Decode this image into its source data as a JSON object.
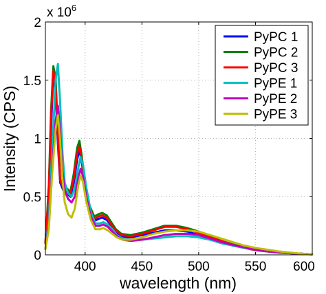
{
  "chart_data": {
    "type": "line",
    "title": "",
    "xlabel": "wavelength (nm)",
    "ylabel": "Intensity (CPS)",
    "xlim": [
      365,
      600
    ],
    "ylim": [
      0,
      2
    ],
    "y_multiplier_base": "x 10",
    "y_multiplier_exp": "6",
    "x_ticks": [
      "400",
      "450",
      "500",
      "550",
      "600"
    ],
    "y_ticks": [
      "0",
      "0.5",
      "1",
      "1.5",
      "2"
    ],
    "grid": true,
    "legend_position": "top-right",
    "series": [
      {
        "name": "PyPC 1",
        "color": "#0000ff",
        "points": [
          [
            365,
            0.1
          ],
          [
            368,
            0.5
          ],
          [
            370,
            1.1
          ],
          [
            372,
            1.57
          ],
          [
            374,
            1.4
          ],
          [
            376,
            0.95
          ],
          [
            378,
            0.62
          ],
          [
            381,
            0.55
          ],
          [
            384,
            0.53
          ],
          [
            387,
            0.5
          ],
          [
            390,
            0.62
          ],
          [
            393,
            0.82
          ],
          [
            395,
            0.9
          ],
          [
            397,
            0.8
          ],
          [
            400,
            0.58
          ],
          [
            404,
            0.38
          ],
          [
            408,
            0.29
          ],
          [
            412,
            0.31
          ],
          [
            415,
            0.32
          ],
          [
            419,
            0.3
          ],
          [
            423,
            0.25
          ],
          [
            427,
            0.2
          ],
          [
            432,
            0.16
          ],
          [
            440,
            0.15
          ],
          [
            450,
            0.17
          ],
          [
            460,
            0.19
          ],
          [
            470,
            0.21
          ],
          [
            480,
            0.21
          ],
          [
            490,
            0.2
          ],
          [
            500,
            0.17
          ],
          [
            510,
            0.14
          ],
          [
            520,
            0.11
          ],
          [
            530,
            0.08
          ],
          [
            540,
            0.06
          ],
          [
            550,
            0.04
          ],
          [
            560,
            0.03
          ],
          [
            570,
            0.02
          ],
          [
            580,
            0.015
          ],
          [
            590,
            0.01
          ],
          [
            600,
            0.005
          ]
        ]
      },
      {
        "name": "PyPC 2",
        "color": "#008000",
        "points": [
          [
            365,
            0.1
          ],
          [
            368,
            0.6
          ],
          [
            370,
            1.25
          ],
          [
            372,
            1.62
          ],
          [
            374,
            1.52
          ],
          [
            376,
            1.05
          ],
          [
            378,
            0.65
          ],
          [
            381,
            0.58
          ],
          [
            384,
            0.57
          ],
          [
            387,
            0.54
          ],
          [
            390,
            0.7
          ],
          [
            393,
            0.92
          ],
          [
            395,
            0.98
          ],
          [
            397,
            0.85
          ],
          [
            400,
            0.62
          ],
          [
            404,
            0.42
          ],
          [
            408,
            0.33
          ],
          [
            412,
            0.35
          ],
          [
            415,
            0.36
          ],
          [
            419,
            0.34
          ],
          [
            423,
            0.28
          ],
          [
            427,
            0.22
          ],
          [
            432,
            0.18
          ],
          [
            440,
            0.17
          ],
          [
            450,
            0.19
          ],
          [
            460,
            0.22
          ],
          [
            470,
            0.25
          ],
          [
            480,
            0.25
          ],
          [
            490,
            0.23
          ],
          [
            500,
            0.2
          ],
          [
            510,
            0.16
          ],
          [
            520,
            0.12
          ],
          [
            530,
            0.09
          ],
          [
            540,
            0.065
          ],
          [
            550,
            0.045
          ],
          [
            560,
            0.03
          ],
          [
            570,
            0.02
          ],
          [
            580,
            0.015
          ],
          [
            590,
            0.01
          ],
          [
            600,
            0.005
          ]
        ]
      },
      {
        "name": "PyPC 3",
        "color": "#ff0000",
        "points": [
          [
            365,
            0.1
          ],
          [
            368,
            0.55
          ],
          [
            370,
            1.2
          ],
          [
            372,
            1.58
          ],
          [
            374,
            1.45
          ],
          [
            376,
            1.0
          ],
          [
            378,
            0.64
          ],
          [
            381,
            0.57
          ],
          [
            384,
            0.55
          ],
          [
            387,
            0.52
          ],
          [
            390,
            0.66
          ],
          [
            393,
            0.87
          ],
          [
            395,
            0.93
          ],
          [
            397,
            0.82
          ],
          [
            400,
            0.6
          ],
          [
            404,
            0.4
          ],
          [
            408,
            0.31
          ],
          [
            412,
            0.33
          ],
          [
            415,
            0.34
          ],
          [
            419,
            0.32
          ],
          [
            423,
            0.26
          ],
          [
            427,
            0.21
          ],
          [
            432,
            0.17
          ],
          [
            440,
            0.16
          ],
          [
            450,
            0.18
          ],
          [
            460,
            0.21
          ],
          [
            470,
            0.24
          ],
          [
            480,
            0.24
          ],
          [
            490,
            0.22
          ],
          [
            500,
            0.19
          ],
          [
            510,
            0.15
          ],
          [
            520,
            0.12
          ],
          [
            530,
            0.085
          ],
          [
            540,
            0.06
          ],
          [
            550,
            0.04
          ],
          [
            560,
            0.03
          ],
          [
            570,
            0.02
          ],
          [
            580,
            0.015
          ],
          [
            590,
            0.01
          ],
          [
            600,
            0.005
          ]
        ]
      },
      {
        "name": "PyPE 1",
        "color": "#00bfbf",
        "points": [
          [
            365,
            0.05
          ],
          [
            368,
            0.3
          ],
          [
            371,
            0.9
          ],
          [
            374,
            1.5
          ],
          [
            376,
            1.64
          ],
          [
            378,
            1.3
          ],
          [
            380,
            0.88
          ],
          [
            382,
            0.62
          ],
          [
            385,
            0.53
          ],
          [
            388,
            0.5
          ],
          [
            391,
            0.57
          ],
          [
            394,
            0.75
          ],
          [
            396,
            0.84
          ],
          [
            398,
            0.78
          ],
          [
            401,
            0.58
          ],
          [
            405,
            0.37
          ],
          [
            409,
            0.27
          ],
          [
            413,
            0.27
          ],
          [
            416,
            0.28
          ],
          [
            420,
            0.26
          ],
          [
            424,
            0.22
          ],
          [
            428,
            0.17
          ],
          [
            433,
            0.14
          ],
          [
            440,
            0.13
          ],
          [
            450,
            0.13
          ],
          [
            460,
            0.14
          ],
          [
            470,
            0.15
          ],
          [
            480,
            0.16
          ],
          [
            490,
            0.16
          ],
          [
            500,
            0.15
          ],
          [
            510,
            0.13
          ],
          [
            520,
            0.1
          ],
          [
            530,
            0.08
          ],
          [
            540,
            0.06
          ],
          [
            550,
            0.045
          ],
          [
            560,
            0.03
          ],
          [
            570,
            0.02
          ],
          [
            580,
            0.015
          ],
          [
            590,
            0.01
          ],
          [
            600,
            0.005
          ]
        ]
      },
      {
        "name": "PyPE 2",
        "color": "#bf00bf",
        "points": [
          [
            365,
            0.05
          ],
          [
            368,
            0.25
          ],
          [
            371,
            0.75
          ],
          [
            374,
            1.15
          ],
          [
            376,
            1.28
          ],
          [
            378,
            1.05
          ],
          [
            380,
            0.72
          ],
          [
            382,
            0.55
          ],
          [
            385,
            0.48
          ],
          [
            388,
            0.45
          ],
          [
            391,
            0.5
          ],
          [
            394,
            0.66
          ],
          [
            396,
            0.74
          ],
          [
            398,
            0.68
          ],
          [
            401,
            0.5
          ],
          [
            405,
            0.33
          ],
          [
            409,
            0.25
          ],
          [
            413,
            0.25
          ],
          [
            416,
            0.26
          ],
          [
            420,
            0.24
          ],
          [
            424,
            0.2
          ],
          [
            428,
            0.16
          ],
          [
            433,
            0.13
          ],
          [
            440,
            0.12
          ],
          [
            450,
            0.13
          ],
          [
            460,
            0.15
          ],
          [
            470,
            0.17
          ],
          [
            480,
            0.18
          ],
          [
            490,
            0.18
          ],
          [
            500,
            0.17
          ],
          [
            510,
            0.14
          ],
          [
            520,
            0.11
          ],
          [
            530,
            0.085
          ],
          [
            540,
            0.065
          ],
          [
            550,
            0.045
          ],
          [
            560,
            0.03
          ],
          [
            570,
            0.02
          ],
          [
            580,
            0.015
          ],
          [
            590,
            0.01
          ],
          [
            600,
            0.005
          ]
        ]
      },
      {
        "name": "PyPE 3",
        "color": "#bfbf00",
        "points": [
          [
            365,
            0.05
          ],
          [
            368,
            0.22
          ],
          [
            371,
            0.7
          ],
          [
            374,
            1.08
          ],
          [
            376,
            1.2
          ],
          [
            378,
            0.98
          ],
          [
            380,
            0.65
          ],
          [
            382,
            0.45
          ],
          [
            385,
            0.35
          ],
          [
            388,
            0.32
          ],
          [
            391,
            0.4
          ],
          [
            394,
            0.6
          ],
          [
            396,
            0.68
          ],
          [
            398,
            0.63
          ],
          [
            401,
            0.46
          ],
          [
            405,
            0.3
          ],
          [
            409,
            0.22
          ],
          [
            413,
            0.22
          ],
          [
            416,
            0.23
          ],
          [
            420,
            0.21
          ],
          [
            424,
            0.18
          ],
          [
            428,
            0.15
          ],
          [
            433,
            0.13
          ],
          [
            440,
            0.13
          ],
          [
            450,
            0.15
          ],
          [
            460,
            0.18
          ],
          [
            470,
            0.2
          ],
          [
            480,
            0.21
          ],
          [
            490,
            0.21
          ],
          [
            500,
            0.2
          ],
          [
            510,
            0.17
          ],
          [
            520,
            0.14
          ],
          [
            530,
            0.11
          ],
          [
            540,
            0.08
          ],
          [
            550,
            0.06
          ],
          [
            560,
            0.045
          ],
          [
            570,
            0.03
          ],
          [
            580,
            0.02
          ],
          [
            590,
            0.01
          ],
          [
            600,
            0.005
          ]
        ]
      }
    ]
  }
}
